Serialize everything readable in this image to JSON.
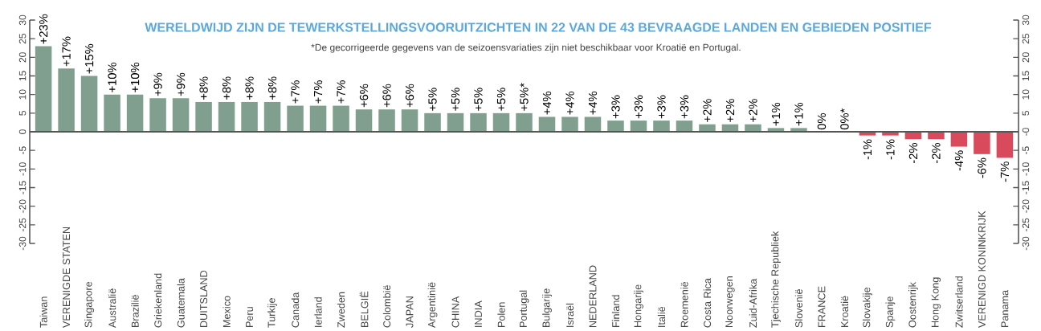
{
  "chart_data": {
    "type": "bar",
    "title": "WERELDWIJD ZIJN DE TEWERKSTELLINGSVOORUITZICHTEN IN 22 VAN DE 43 BEVRAAGDE LANDEN EN GEBIEDEN POSITIEF",
    "annotations": [
      "*De gecorrigeerde gegevens van de seizoensvariaties zijn niet beschikbaar voor Kroatië en Portugal."
    ],
    "categories": [
      "Taiwan",
      "VERENIGDE STATEN",
      "Singapore",
      "Australië",
      "Brazilië",
      "Griekenland",
      "Guatemala",
      "DUITSLAND",
      "Mexico",
      "Peru",
      "Turkije",
      "Canada",
      "Ierland",
      "Zweden",
      "BELGIË",
      "Colombië",
      "JAPAN",
      "Argentinië",
      "CHINA",
      "INDIA",
      "Polen",
      "Portugal",
      "Bulgarije",
      "Israël",
      "NEDERLAND",
      "Finland",
      "Hongarije",
      "Italië",
      "Roemenië",
      "Costa Rica",
      "Noorwegen",
      "Zuid-Afrika",
      "Tjechische Republiek",
      "Slovenië",
      "FRANCE",
      "Kroatië",
      "Slovakije",
      "Spanje",
      "Oostenrijk",
      "Hong Kong",
      "Zwitserland",
      "VERENIGD KONINKRIJK",
      "Panama"
    ],
    "values": [
      23,
      17,
      15,
      10,
      10,
      9,
      9,
      8,
      8,
      8,
      8,
      7,
      7,
      7,
      6,
      6,
      6,
      5,
      5,
      5,
      5,
      5,
      4,
      4,
      4,
      3,
      3,
      3,
      3,
      2,
      2,
      2,
      1,
      1,
      0,
      0,
      -1,
      -1,
      -2,
      -2,
      -4,
      -6,
      -7
    ],
    "value_labels": [
      "+23%",
      "+17%",
      "+15%",
      "+10%",
      "+10%",
      "+9%",
      "+9%",
      "+8%",
      "+8%",
      "+8%",
      "+8%",
      "+7%",
      "+7%",
      "+7%",
      "+6%",
      "+6%",
      "+6%",
      "+5%",
      "+5%",
      "+5%",
      "+5%",
      "+5%*",
      "+4%",
      "+4%",
      "+4%",
      "+3%",
      "+3%",
      "+3%",
      "+3%",
      "+2%",
      "+2%",
      "+2%",
      "+1%",
      "+1%",
      "0%",
      "0%*",
      "-1%",
      "-1%",
      "-2%",
      "-2%",
      "-4%",
      "-6%",
      "-7%"
    ],
    "colors": [
      "#809f8f",
      "#809f8f",
      "#809f8f",
      "#809f8f",
      "#809f8f",
      "#809f8f",
      "#809f8f",
      "#809f8f",
      "#809f8f",
      "#809f8f",
      "#809f8f",
      "#809f8f",
      "#809f8f",
      "#809f8f",
      "#809f8f",
      "#809f8f",
      "#809f8f",
      "#809f8f",
      "#809f8f",
      "#809f8f",
      "#809f8f",
      "#809f8f",
      "#809f8f",
      "#809f8f",
      "#809f8f",
      "#809f8f",
      "#809f8f",
      "#809f8f",
      "#809f8f",
      "#809f8f",
      "#809f8f",
      "#809f8f",
      "#809f8f",
      "#809f8f",
      "#809f8f",
      "#809f8f",
      "#d94a5c",
      "#d94a5c",
      "#d94a5c",
      "#d94a5c",
      "#d94a5c",
      "#d94a5c",
      "#d94a5c"
    ],
    "ylim": [
      -30,
      30
    ],
    "yticks": [
      -30,
      -25,
      -20,
      -15,
      -10,
      -5,
      0,
      5,
      10,
      15,
      20,
      25,
      30
    ],
    "y2lim": [
      -30,
      30
    ],
    "y2ticks": [
      -30,
      -25,
      -20,
      -15,
      -10,
      -5,
      {
        "value": 0,
        "label": "-0"
      },
      5,
      10,
      15,
      20,
      25,
      30
    ]
  }
}
